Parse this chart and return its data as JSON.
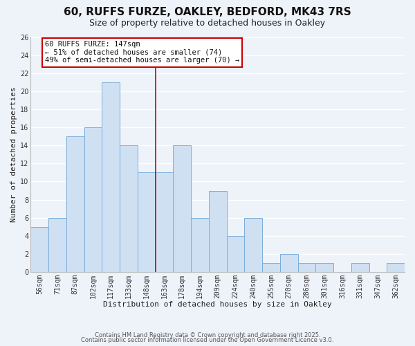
{
  "title": "60, RUFFS FURZE, OAKLEY, BEDFORD, MK43 7RS",
  "subtitle": "Size of property relative to detached houses in Oakley",
  "xlabel": "Distribution of detached houses by size in Oakley",
  "ylabel": "Number of detached properties",
  "categories": [
    "56sqm",
    "71sqm",
    "87sqm",
    "102sqm",
    "117sqm",
    "133sqm",
    "148sqm",
    "163sqm",
    "178sqm",
    "194sqm",
    "209sqm",
    "224sqm",
    "240sqm",
    "255sqm",
    "270sqm",
    "286sqm",
    "301sqm",
    "316sqm",
    "331sqm",
    "347sqm",
    "362sqm"
  ],
  "values": [
    5,
    6,
    15,
    16,
    21,
    14,
    11,
    11,
    14,
    6,
    9,
    4,
    6,
    1,
    2,
    1,
    1,
    0,
    1,
    0,
    1
  ],
  "bar_color": "#cfe0f3",
  "bar_edge_color": "#7aadda",
  "ylim": [
    0,
    26
  ],
  "yticks": [
    0,
    2,
    4,
    6,
    8,
    10,
    12,
    14,
    16,
    18,
    20,
    22,
    24,
    26
  ],
  "vline_x": 6.5,
  "vline_color": "#cc0000",
  "annotation_title": "60 RUFFS FURZE: 147sqm",
  "annotation_line1": "← 51% of detached houses are smaller (74)",
  "annotation_line2": "49% of semi-detached houses are larger (70) →",
  "annotation_box_color": "#ffffff",
  "annotation_box_edge": "#cc0000",
  "footer1": "Contains HM Land Registry data © Crown copyright and database right 2025.",
  "footer2": "Contains public sector information licensed under the Open Government Licence v3.0.",
  "background_color": "#eef2f9",
  "grid_color": "#ffffff",
  "title_fontsize": 11,
  "subtitle_fontsize": 9,
  "axis_label_fontsize": 8,
  "tick_fontsize": 7,
  "annotation_fontsize": 7.5,
  "footer_fontsize": 6
}
